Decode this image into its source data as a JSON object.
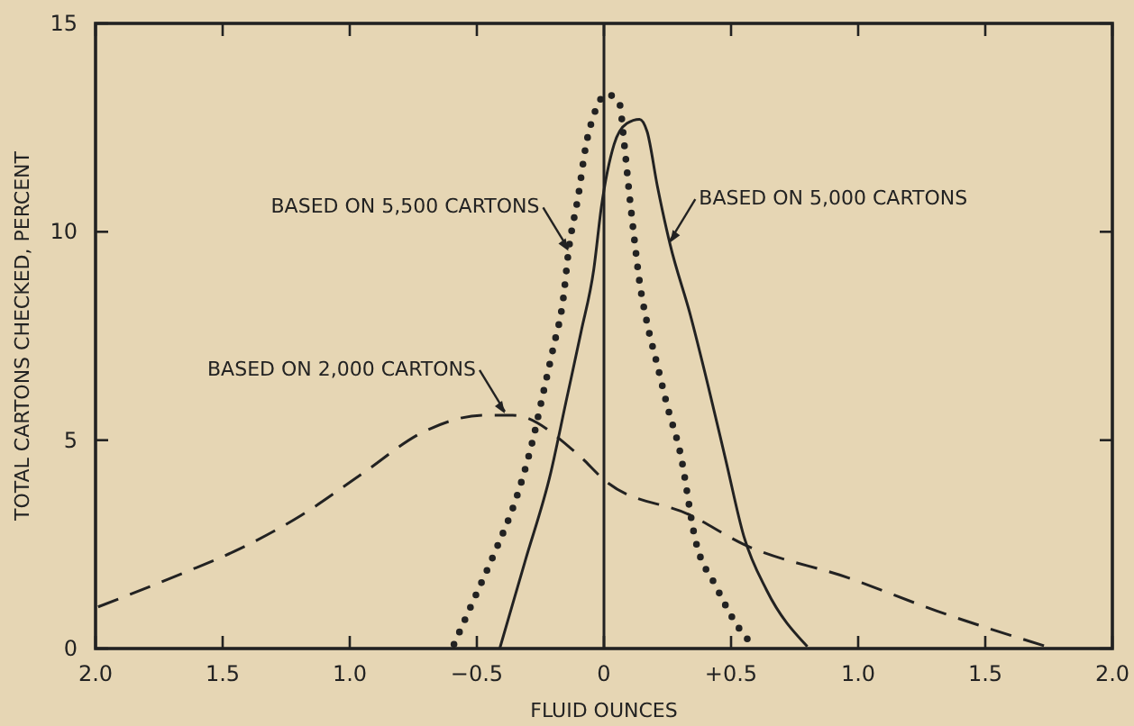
{
  "chart_data": {
    "type": "line",
    "xlabel": "FLUID OUNCES",
    "ylabel": "TOTAL CARTONS CHECKED, PERCENT",
    "xlim": [
      -2,
      2
    ],
    "ylim": [
      0,
      15
    ],
    "xticks": [
      {
        "value": -2,
        "label": "2.0"
      },
      {
        "value": -1.5,
        "label": "1.5"
      },
      {
        "value": -1,
        "label": "1.0"
      },
      {
        "value": -0.5,
        "label": "−0.5"
      },
      0,
      {
        "value": 0.5,
        "label": "+0.5"
      },
      {
        "value": 1,
        "label": "1.0"
      },
      {
        "value": 1.5,
        "label": "1.5"
      },
      {
        "value": 2,
        "label": "2.0"
      }
    ],
    "yticks": [
      0,
      5,
      10,
      15
    ],
    "grid": false,
    "ref_lines": [
      {
        "axis": "x",
        "value": 0,
        "color": "#222222",
        "line_style": "solid"
      }
    ],
    "series": [
      {
        "color": "#222222",
        "line_style": "dotted",
        "x": [
          -0.59,
          -0.51,
          -0.43,
          -0.34,
          -0.28,
          -0.24,
          -0.2,
          -0.16,
          -0.14,
          -0.1,
          -0.07,
          -0.04,
          0.01,
          0.06,
          0.08,
          0.1,
          0.12,
          0.14,
          0.17,
          0.21,
          0.25,
          0.3,
          0.36,
          0.44,
          0.53,
          0.59
        ],
        "values": [
          0.1,
          1.2,
          2.3,
          3.7,
          5,
          6.1,
          7.2,
          8.4,
          9.5,
          10.9,
          12.1,
          12.8,
          13.3,
          13.1,
          12.1,
          10.9,
          9.8,
          8.8,
          7.8,
          6.8,
          5.8,
          4.7,
          2.6,
          1.5,
          0.5,
          0.05
        ]
      },
      {
        "color": "#222222",
        "line_style": "solid",
        "x": [
          -0.41,
          -0.31,
          -0.21,
          -0.15,
          -0.09,
          -0.04,
          -0.01,
          0.04,
          0.09,
          0.14,
          0.17,
          0.21,
          0.26,
          0.34,
          0.41,
          0.48,
          0.55,
          0.64,
          0.8
        ],
        "values": [
          0,
          2.1,
          4.2,
          5.9,
          7.6,
          9.1,
          10.6,
          12.1,
          12.6,
          12.7,
          12.4,
          11.1,
          9.7,
          8,
          6.3,
          4.5,
          2.7,
          1.4,
          0.05
        ]
      },
      {
        "color": "#222222",
        "line_style": "dashed",
        "x": [
          -1.99,
          -1.66,
          -1.43,
          -1.19,
          -0.95,
          -0.71,
          -0.47,
          -0.36,
          -0.11,
          0.01,
          0.34,
          0.55,
          0.96,
          1.31,
          1.74
        ],
        "values": [
          1,
          1.8,
          2.4,
          3.2,
          4.2,
          5.2,
          5.6,
          5.6,
          4.7,
          4,
          3.2,
          2.5,
          1.7,
          0.9,
          0.05
        ]
      }
    ],
    "annotations": [
      {
        "text": "BASED ON 5,500 CARTONS",
        "x": -0.14,
        "y": 9.5
      },
      {
        "text": "BASED ON 5,000 CARTONS",
        "x": 0.26,
        "y": 9.7
      },
      {
        "text": "BASED ON 2,000 CARTONS",
        "x": -0.39,
        "y": 5.6
      }
    ]
  }
}
